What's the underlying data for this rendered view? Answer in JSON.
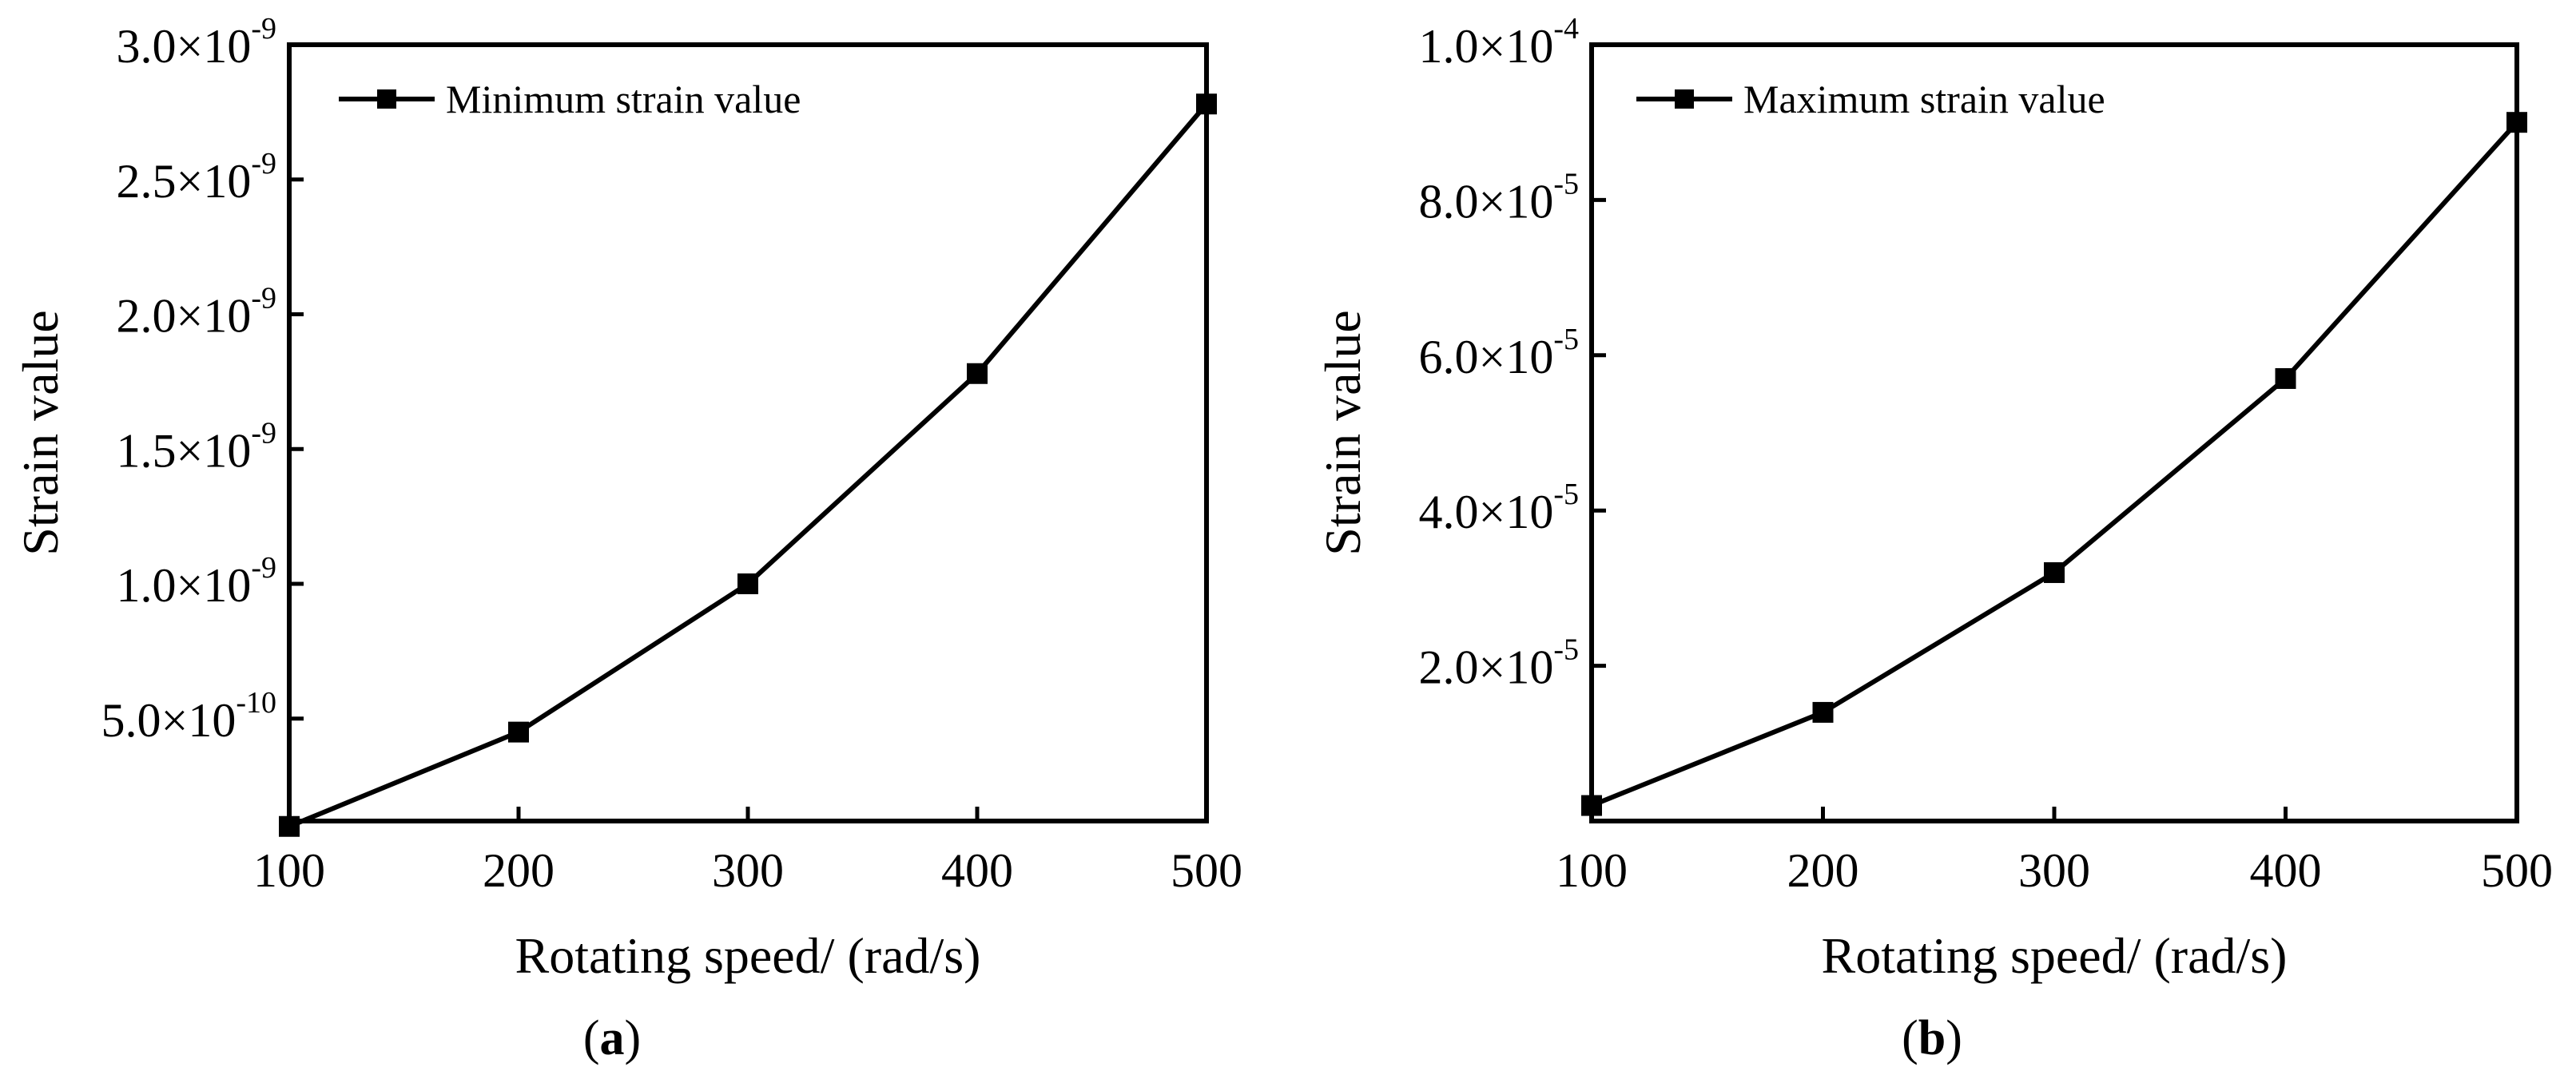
{
  "colors": {
    "line": "#000000",
    "background": "#ffffff"
  },
  "chart_data": [
    {
      "type": "line",
      "panel_label": "a",
      "xlabel": "Rotating speed/ (rad/s)",
      "ylabel": "Strain value",
      "x": [
        100,
        200,
        300,
        400,
        500
      ],
      "xlim": [
        100,
        500
      ],
      "xticks": [
        "100",
        "200",
        "300",
        "400",
        "500"
      ],
      "ylim": [
        1.2e-10,
        3e-09
      ],
      "yticks": [
        {
          "value": 5e-10,
          "mantissa": "5.0",
          "exponent": "-10"
        },
        {
          "value": 1e-09,
          "mantissa": "1.0",
          "exponent": "-9"
        },
        {
          "value": 1.5e-09,
          "mantissa": "1.5",
          "exponent": "-9"
        },
        {
          "value": 2e-09,
          "mantissa": "2.0",
          "exponent": "-9"
        },
        {
          "value": 2.5e-09,
          "mantissa": "2.5",
          "exponent": "-9"
        },
        {
          "value": 3e-09,
          "mantissa": "3.0",
          "exponent": "-9"
        }
      ],
      "times_symbol": "×10",
      "series": [
        {
          "name": "Minimum strain value",
          "marker": "square",
          "values": [
            1e-10,
            4.5e-10,
            1e-09,
            1.78e-09,
            2.78e-09
          ]
        }
      ],
      "legend": "top-left"
    },
    {
      "type": "line",
      "panel_label": "b",
      "xlabel": "Rotating speed/ (rad/s)",
      "ylabel": "Strain value",
      "x": [
        100,
        200,
        300,
        400,
        500
      ],
      "xlim": [
        100,
        500
      ],
      "xticks": [
        "100",
        "200",
        "300",
        "400",
        "500"
      ],
      "ylim": [
        0,
        0.0001
      ],
      "yticks": [
        {
          "value": 2e-05,
          "mantissa": "2.0",
          "exponent": "-5"
        },
        {
          "value": 4e-05,
          "mantissa": "4.0",
          "exponent": "-5"
        },
        {
          "value": 6e-05,
          "mantissa": "6.0",
          "exponent": "-5"
        },
        {
          "value": 8e-05,
          "mantissa": "8.0",
          "exponent": "-5"
        },
        {
          "value": 0.0001,
          "mantissa": "1.0",
          "exponent": "-4"
        }
      ],
      "times_symbol": "×10",
      "series": [
        {
          "name": "Maximum strain value",
          "marker": "square",
          "values": [
            2e-06,
            1.4e-05,
            3.2e-05,
            5.7e-05,
            9e-05
          ]
        }
      ],
      "legend": "top-left"
    }
  ]
}
